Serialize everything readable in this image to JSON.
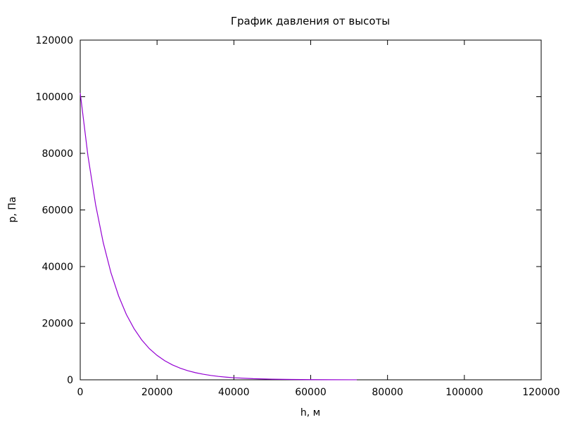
{
  "chart_data": {
    "type": "line",
    "title": "График давления от высоты",
    "xlabel": "h, м",
    "ylabel": "p, Па",
    "xlim": [
      0,
      120000
    ],
    "ylim": [
      0,
      120000
    ],
    "xticks": [
      0,
      20000,
      40000,
      60000,
      80000,
      100000,
      120000
    ],
    "yticks": [
      0,
      20000,
      40000,
      60000,
      80000,
      100000,
      120000
    ],
    "xtick_labels": [
      "0",
      "20000",
      "40000",
      "60000",
      "80000",
      "100000",
      "120000"
    ],
    "ytick_labels": [
      "0",
      "20000",
      "40000",
      "60000",
      "80000",
      "100000",
      "120000"
    ],
    "grid": false,
    "legend": false,
    "series": [
      {
        "color": "#9400d3",
        "x": [
          0,
          2000,
          4000,
          6000,
          8000,
          10000,
          12000,
          14000,
          16000,
          18000,
          20000,
          22000,
          24000,
          26000,
          28000,
          30000,
          32000,
          34000,
          36000,
          38000,
          40000,
          45000,
          50000,
          55000,
          60000,
          65000,
          70000,
          72000
        ],
        "y": [
          101325,
          79200,
          61900,
          48400,
          37800,
          29600,
          23100,
          18100,
          14100,
          11000,
          8620,
          6740,
          5270,
          4120,
          3220,
          2520,
          1970,
          1540,
          1200,
          940,
          735,
          400,
          220,
          120,
          65,
          36,
          20,
          15
        ]
      }
    ]
  }
}
